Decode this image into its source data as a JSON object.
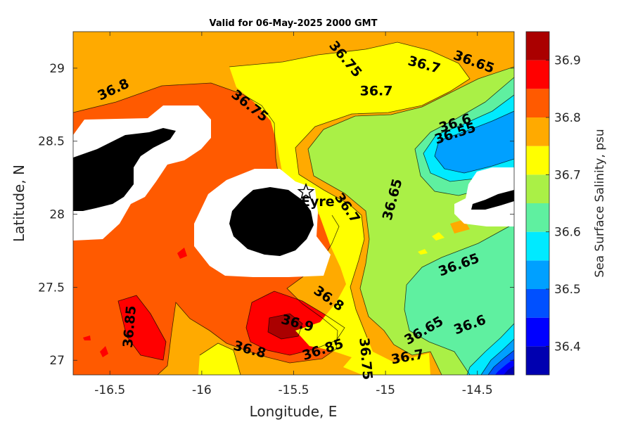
{
  "chart_data": {
    "type": "filled-contour-map",
    "title": "Valid for 06-May-2025 2000 GMT",
    "xlabel": "Longitude, E",
    "ylabel": "Latitude, N",
    "colorbar_label": "Sea Surface Salinity, psu",
    "xlim": [
      -16.7,
      -14.3
    ],
    "ylim": [
      26.9,
      29.25
    ],
    "xticks": [
      -16.5,
      -16,
      -15.5,
      -15,
      -14.5
    ],
    "xtick_labels": [
      "-16.5",
      "-16",
      "-15.5",
      "-15",
      "-14.5"
    ],
    "yticks": [
      27,
      27.5,
      28,
      28.5,
      29
    ],
    "ytick_labels": [
      "27",
      "27.5",
      "28",
      "28.5",
      "29"
    ],
    "colorbar": {
      "range": [
        36.35,
        36.95
      ],
      "ticks": [
        36.4,
        36.5,
        36.6,
        36.7,
        36.8,
        36.9
      ],
      "tick_labels": [
        "36.4",
        "36.5",
        "36.6",
        "36.7",
        "36.8",
        "36.9"
      ],
      "levels": [
        {
          "from": 36.35,
          "to": 36.4,
          "color": "#0000b0"
        },
        {
          "from": 36.4,
          "to": 36.45,
          "color": "#0000ff"
        },
        {
          "from": 36.45,
          "to": 36.5,
          "color": "#0050ff"
        },
        {
          "from": 36.5,
          "to": 36.55,
          "color": "#00a0ff"
        },
        {
          "from": 36.55,
          "to": 36.6,
          "color": "#00eaff"
        },
        {
          "from": 36.6,
          "to": 36.65,
          "color": "#5ff0a0"
        },
        {
          "from": 36.65,
          "to": 36.7,
          "color": "#aaf046"
        },
        {
          "from": 36.7,
          "to": 36.75,
          "color": "#ffff00"
        },
        {
          "from": 36.75,
          "to": 36.8,
          "color": "#ffaa00"
        },
        {
          "from": 36.8,
          "to": 36.85,
          "color": "#ff5a00"
        },
        {
          "from": 36.85,
          "to": 36.9,
          "color": "#ff0000"
        },
        {
          "from": 36.9,
          "to": 36.95,
          "color": "#aa0000"
        }
      ]
    },
    "contour_labels": [
      {
        "text": "36.8",
        "lon": -16.48,
        "lat": 28.85,
        "angle": -25
      },
      {
        "text": "36.75",
        "lon": -15.74,
        "lat": 28.74,
        "angle": 38
      },
      {
        "text": "36.75",
        "lon": -15.22,
        "lat": 29.06,
        "angle": 50
      },
      {
        "text": "36.7",
        "lon": -14.79,
        "lat": 29.02,
        "angle": 15
      },
      {
        "text": "36.65",
        "lon": -14.52,
        "lat": 29.04,
        "angle": 20
      },
      {
        "text": "36.7",
        "lon": -15.05,
        "lat": 28.84,
        "angle": 0
      },
      {
        "text": "36.6",
        "lon": -14.62,
        "lat": 28.62,
        "angle": -18
      },
      {
        "text": "36.55",
        "lon": -14.62,
        "lat": 28.55,
        "angle": -18
      },
      {
        "text": "36.65",
        "lon": -14.96,
        "lat": 28.1,
        "angle": -75
      },
      {
        "text": "36.7",
        "lon": -15.21,
        "lat": 28.04,
        "angle": 55
      },
      {
        "text": "36.65",
        "lon": -14.6,
        "lat": 27.65,
        "angle": -20
      },
      {
        "text": "36.85",
        "lon": -16.39,
        "lat": 27.23,
        "angle": -85
      },
      {
        "text": "36.8",
        "lon": -15.31,
        "lat": 27.42,
        "angle": 35
      },
      {
        "text": "36.9",
        "lon": -15.48,
        "lat": 27.25,
        "angle": 15
      },
      {
        "text": "36.85",
        "lon": -15.34,
        "lat": 27.07,
        "angle": -18
      },
      {
        "text": "36.8",
        "lon": -15.74,
        "lat": 27.07,
        "angle": 15
      },
      {
        "text": "36.75",
        "lon": -15.11,
        "lat": 27.01,
        "angle": 85
      },
      {
        "text": "36.7",
        "lon": -14.88,
        "lat": 27.02,
        "angle": -10
      },
      {
        "text": "36.65",
        "lon": -14.79,
        "lat": 27.2,
        "angle": -30
      },
      {
        "text": "36.6",
        "lon": -14.54,
        "lat": 27.24,
        "angle": -20
      }
    ],
    "site_marker": {
      "label": "Eyre",
      "symbol": "star",
      "lon": -15.39,
      "lat": 28.16
    }
  }
}
